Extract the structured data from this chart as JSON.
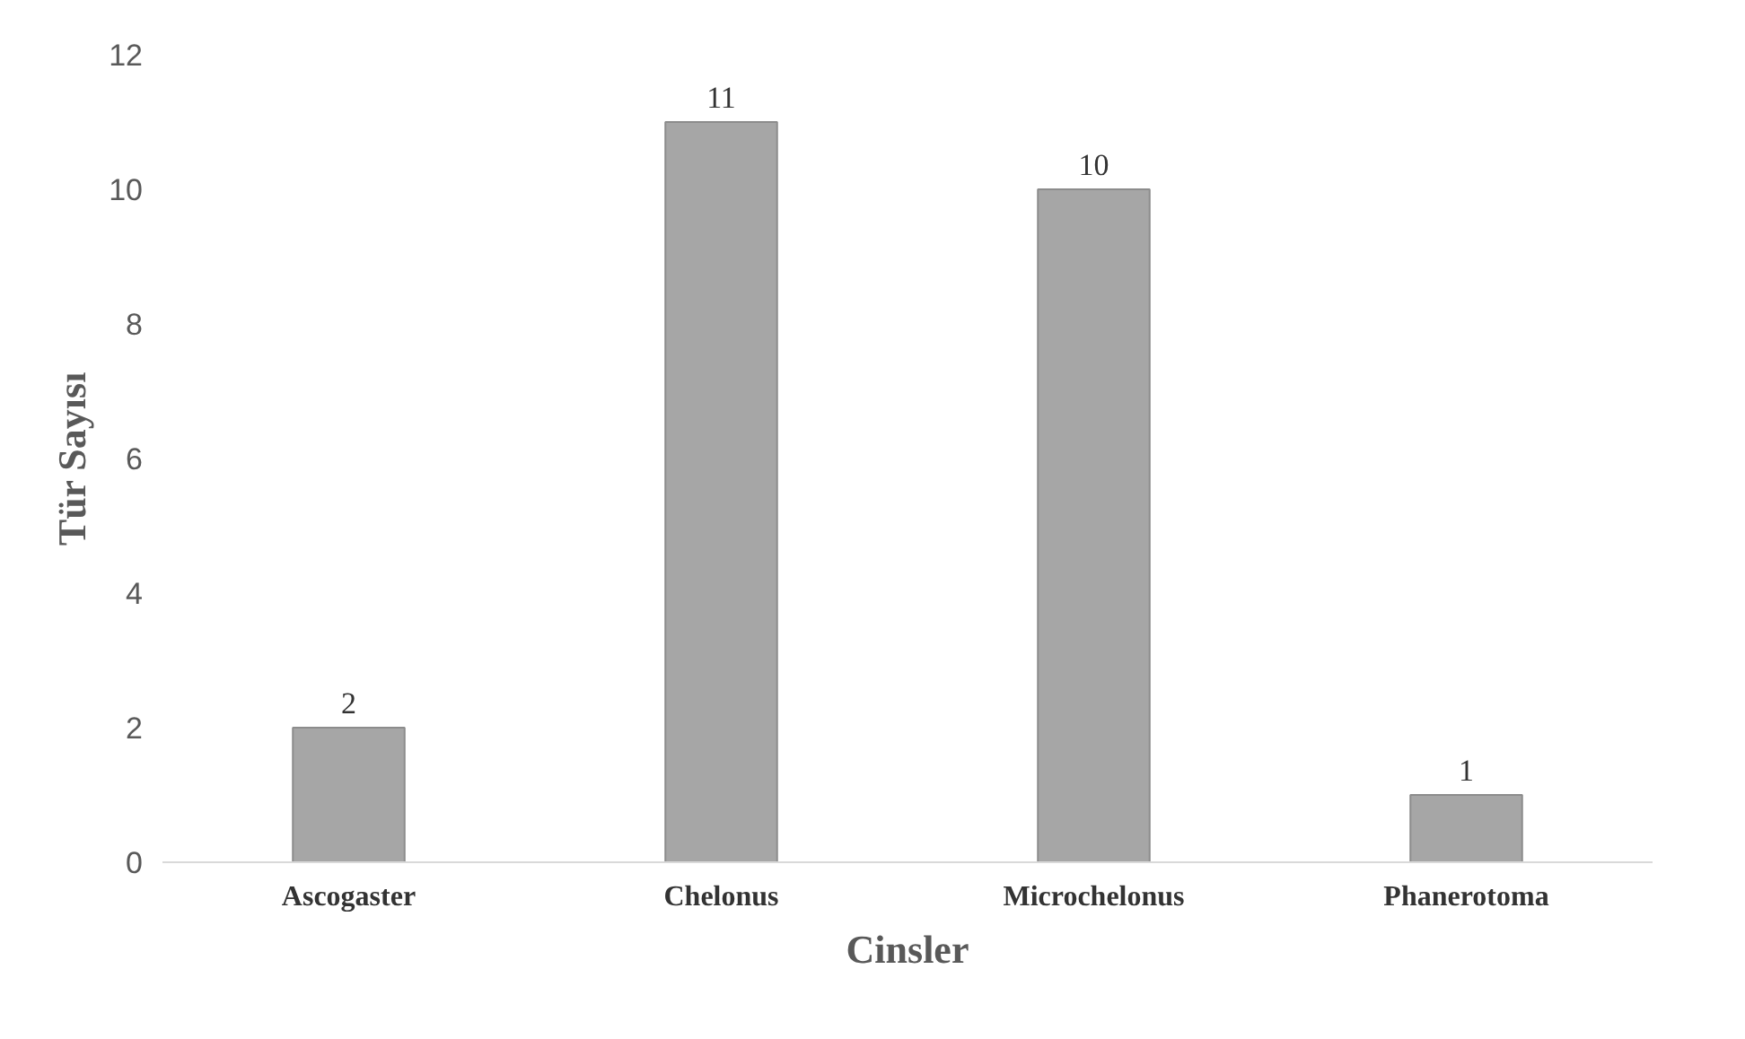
{
  "chart_data": {
    "type": "bar",
    "xlabel": "Cinsler",
    "ylabel": "Tür Sayısı",
    "categories": [
      "Ascogaster",
      "Chelonus",
      "Microchelonus",
      "Phanerotoma"
    ],
    "values": [
      2,
      11,
      10,
      1
    ],
    "color": "#a6a6a6",
    "ylim": [
      0,
      12
    ],
    "yticks": [
      0,
      2,
      4,
      6,
      8,
      10,
      12
    ],
    "grid": false,
    "data_labels": true
  }
}
